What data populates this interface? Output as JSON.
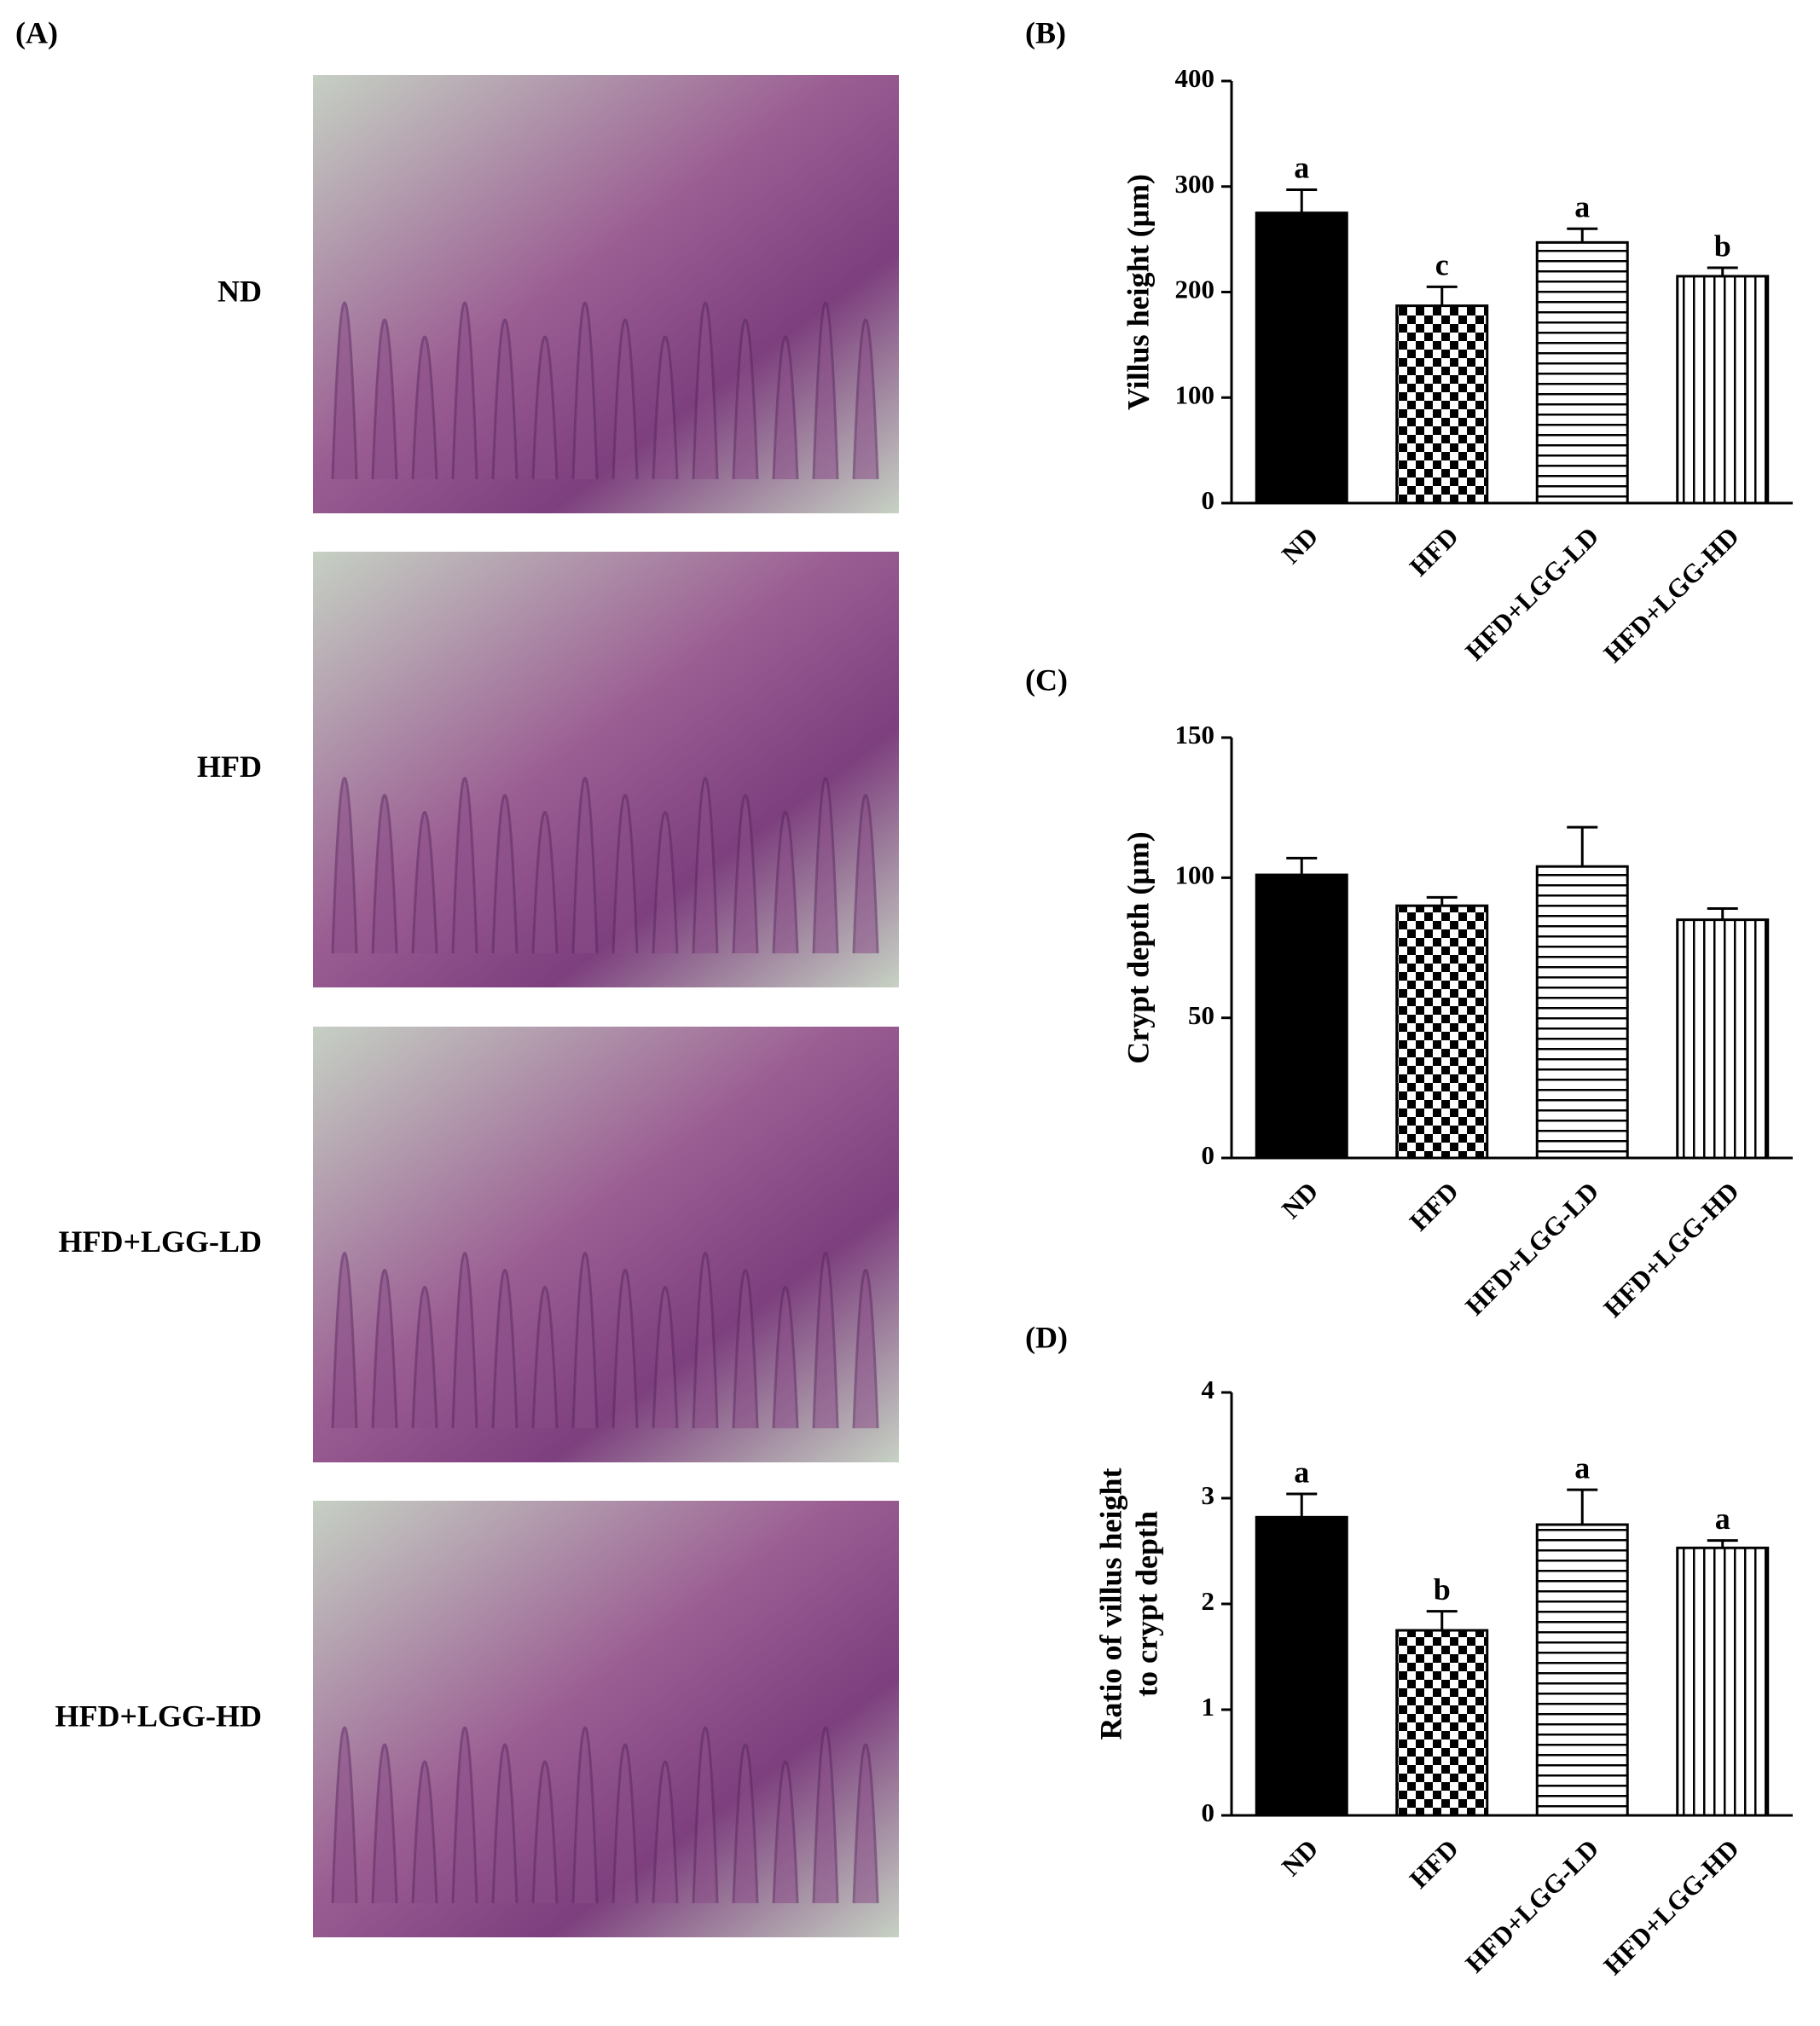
{
  "images_panel": {
    "label": "(A)",
    "rows": [
      "ND",
      "HFD",
      "HFD+LGG-LD",
      "HFD+LGG-HD"
    ]
  },
  "chart_data": [
    {
      "type": "bar",
      "panel": "(B)",
      "y_label": [
        "Villus height (μm)"
      ],
      "categories": [
        "ND",
        "HFD",
        "HFD+LGG-LD",
        "HFD+LGG-HD"
      ],
      "values": [
        275,
        187,
        247,
        215
      ],
      "errors": [
        22,
        18,
        13,
        8
      ],
      "letters": [
        "a",
        "c",
        "a",
        "b"
      ],
      "patterns": [
        "solid",
        "checker",
        "hlines",
        "vlines"
      ],
      "ylim": [
        0,
        400
      ],
      "yticks": [
        0,
        100,
        200,
        300,
        400
      ]
    },
    {
      "type": "bar",
      "panel": "(C)",
      "y_label": [
        "Crypt depth (μm)"
      ],
      "categories": [
        "ND",
        "HFD",
        "HFD+LGG-LD",
        "HFD+LGG-HD"
      ],
      "values": [
        101,
        90,
        104,
        85
      ],
      "errors": [
        6,
        3,
        14,
        4
      ],
      "patterns": [
        "solid",
        "checker",
        "hlines",
        "vlines"
      ],
      "ylim": [
        0,
        150
      ],
      "yticks": [
        0,
        50,
        100,
        150
      ]
    },
    {
      "type": "bar",
      "panel": "(D)",
      "y_label": [
        "Ratio of villus height",
        "to crypt depth"
      ],
      "categories": [
        "ND",
        "HFD",
        "HFD+LGG-LD",
        "HFD+LGG-HD"
      ],
      "values": [
        2.82,
        1.75,
        2.75,
        2.53
      ],
      "errors": [
        0.22,
        0.18,
        0.33,
        0.07
      ],
      "letters": [
        "a",
        "b",
        "a",
        "a"
      ],
      "patterns": [
        "solid",
        "checker",
        "hlines",
        "vlines"
      ],
      "ylim": [
        0,
        4
      ],
      "yticks": [
        0,
        1,
        2,
        3,
        4
      ]
    }
  ]
}
